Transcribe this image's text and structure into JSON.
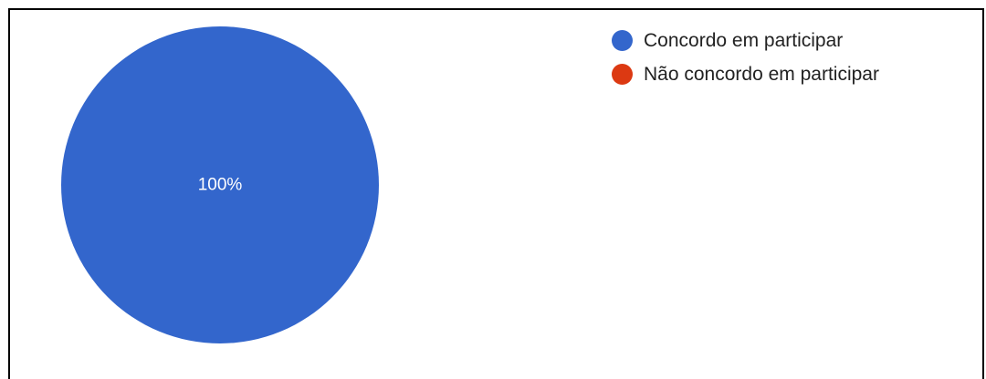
{
  "chart_data": {
    "type": "pie",
    "categories": [
      "Concordo em participar",
      "Não concordo em participar"
    ],
    "values": [
      100,
      0
    ],
    "colors": [
      "#3366cc",
      "#dc3912"
    ],
    "slice_label_color": "#ffffff",
    "legend_position": "top-right"
  },
  "legend": {
    "items": [
      {
        "label": "Concordo em participar",
        "color": "#3366cc"
      },
      {
        "label": "Não concordo em participar",
        "color": "#dc3912"
      }
    ]
  }
}
